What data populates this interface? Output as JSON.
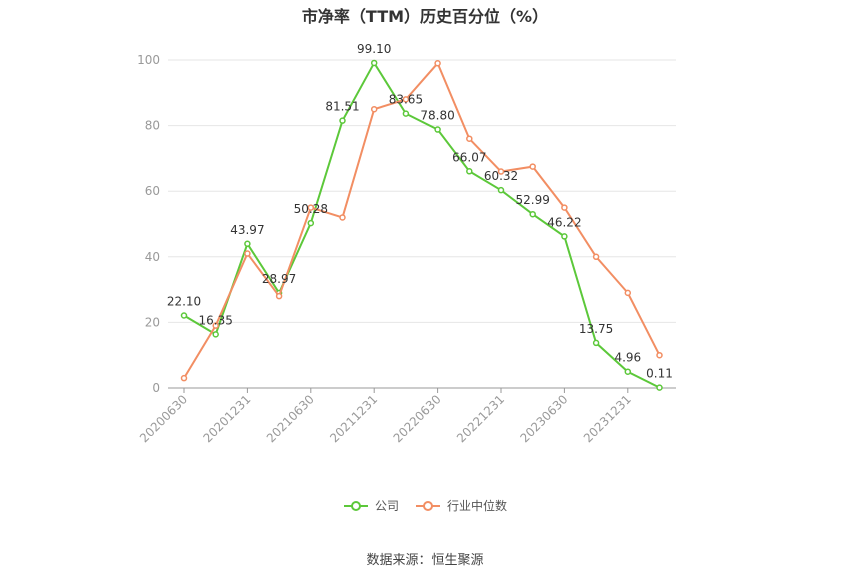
{
  "chart_data": {
    "type": "line",
    "title": "市净率（TTM）历史百分位（%）",
    "x": [
      "20200630",
      "",
      "20201231",
      "",
      "20210630",
      "",
      "20211231",
      "",
      "20220630",
      "",
      "20221231",
      "",
      "20230630",
      "",
      "20231231",
      ""
    ],
    "x_tick_labels": [
      "20200630",
      "20201231",
      "20210630",
      "20211231",
      "20220630",
      "20221231",
      "20230630",
      "20231231"
    ],
    "ylim": [
      0,
      100
    ],
    "y_ticks": [
      0,
      20,
      40,
      60,
      80,
      100
    ],
    "grid": true,
    "legend_position": "bottom",
    "series": [
      {
        "name": "公司",
        "color": "#5cc83a",
        "values": [
          22.1,
          16.35,
          43.97,
          28.97,
          50.28,
          81.51,
          99.1,
          83.65,
          78.8,
          66.07,
          60.32,
          52.99,
          46.22,
          13.75,
          4.96,
          0.11
        ],
        "labels": [
          "22.10",
          "16.35",
          "43.97",
          "28.97",
          "50.28",
          "81.51",
          "99.10",
          "83.65",
          "78.80",
          "66.07",
          "60.32",
          "52.99",
          "46.22",
          "13.75",
          "4.96",
          "0.11"
        ]
      },
      {
        "name": "行业中位数",
        "color": "#f28e63",
        "values": [
          3,
          19,
          41,
          28,
          55,
          52,
          85,
          88,
          99,
          76,
          66,
          67.5,
          55,
          40,
          29,
          10
        ]
      }
    ]
  },
  "source": "数据来源：恒生聚源"
}
